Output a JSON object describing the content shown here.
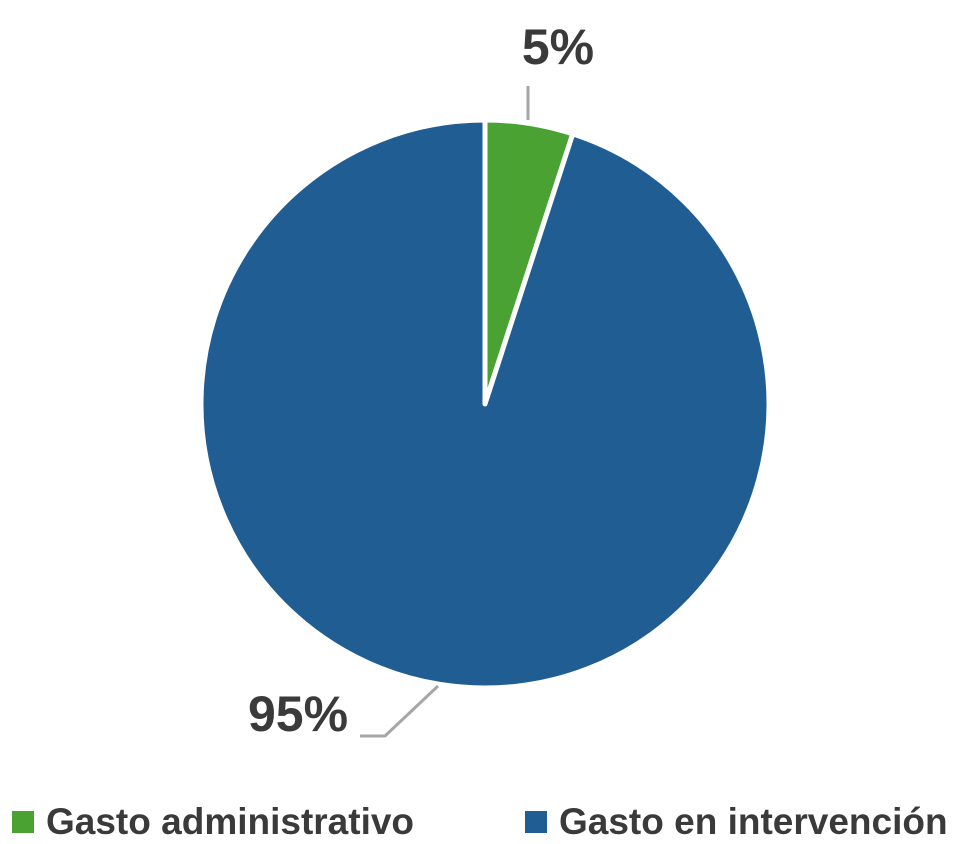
{
  "chart_data": {
    "type": "pie",
    "start_angle_deg": 0,
    "direction": "clockwise",
    "slices": [
      {
        "label": "Gasto administrativo",
        "value": 5,
        "display": "5%",
        "color": "#4aa233"
      },
      {
        "label": "Gasto en intervención",
        "value": 95,
        "display": "95%",
        "color": "#1f5d93"
      }
    ],
    "legend": {
      "position": "bottom",
      "items": [
        {
          "label": "Gasto administrativo",
          "color": "#4aa233"
        },
        {
          "label": "Gasto en intervención",
          "color": "#1f5d93"
        }
      ]
    },
    "leader_line_color": "#a6a6a6",
    "label_color": "#3a3a3a"
  }
}
